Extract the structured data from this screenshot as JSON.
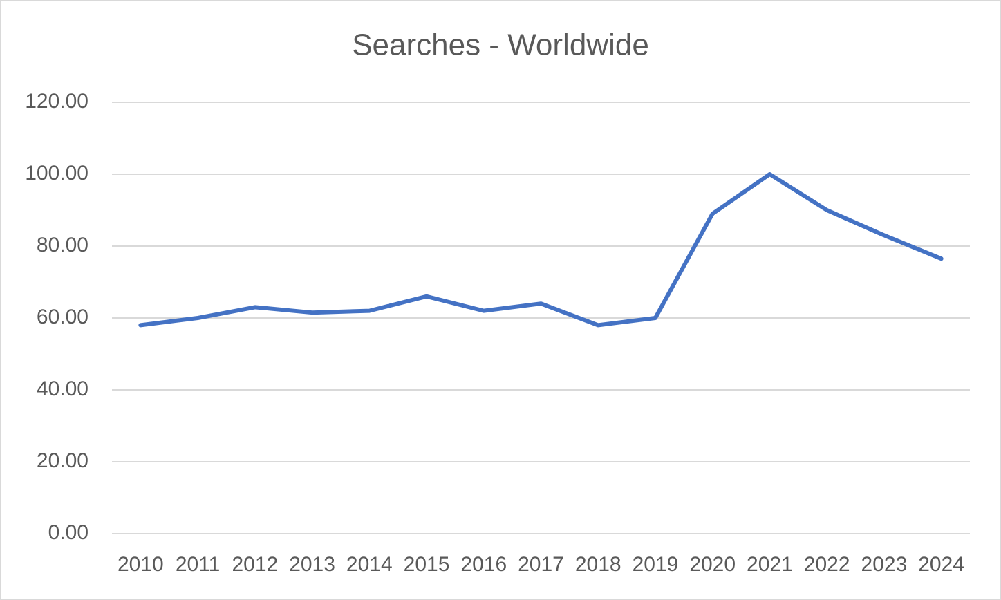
{
  "chart_data": {
    "type": "line",
    "title": "Searches - Worldwide",
    "categories": [
      "2010",
      "2011",
      "2012",
      "2013",
      "2014",
      "2015",
      "2016",
      "2017",
      "2018",
      "2019",
      "2020",
      "2021",
      "2022",
      "2023",
      "2024"
    ],
    "values": [
      58,
      60,
      63,
      61.5,
      62,
      66,
      62,
      64,
      58,
      60,
      89,
      100,
      90,
      83,
      76.5
    ],
    "color": "#4472c4",
    "ylim": [
      0,
      120
    ],
    "yticks": [
      {
        "value": 0,
        "label": "0.00"
      },
      {
        "value": 20,
        "label": "20.00"
      },
      {
        "value": 40,
        "label": "40.00"
      },
      {
        "value": 60,
        "label": "60.00"
      },
      {
        "value": 80,
        "label": "80.00"
      },
      {
        "value": 100,
        "label": "100.00"
      },
      {
        "value": 120,
        "label": "120.00"
      }
    ],
    "grid": true
  }
}
